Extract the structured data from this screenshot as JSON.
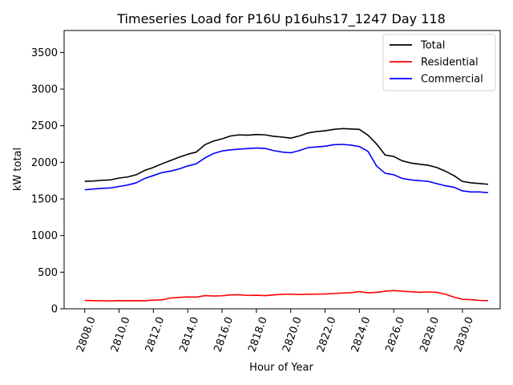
{
  "chart_data": {
    "type": "line",
    "title": "Timeseries Load for P16U p16uhs17_1247  Day 118",
    "xlabel": "Hour of Year",
    "ylabel": "kW total",
    "xlim": [
      2806.8,
      2832.2
    ],
    "ylim": [
      0,
      3800
    ],
    "xticks": [
      2808,
      2810,
      2812,
      2814,
      2816,
      2818,
      2820,
      2822,
      2824,
      2826,
      2828,
      2830
    ],
    "xtick_labels": [
      "2808.0",
      "2810.0",
      "2812.0",
      "2814.0",
      "2816.0",
      "2818.0",
      "2820.0",
      "2822.0",
      "2824.0",
      "2826.0",
      "2828.0",
      "2830.0"
    ],
    "yticks": [
      0,
      500,
      1000,
      1500,
      2000,
      2500,
      3000,
      3500
    ],
    "ytick_labels": [
      "0",
      "500",
      "1000",
      "1500",
      "2000",
      "2500",
      "3000",
      "3500"
    ],
    "legend_position": "top-right",
    "grid": false,
    "x": [
      2808.0,
      2808.5,
      2809.0,
      2809.5,
      2810.0,
      2810.5,
      2811.0,
      2811.5,
      2812.0,
      2812.5,
      2813.0,
      2813.5,
      2814.0,
      2814.5,
      2815.0,
      2815.5,
      2816.0,
      2816.5,
      2817.0,
      2817.5,
      2818.0,
      2818.5,
      2819.0,
      2819.5,
      2820.0,
      2820.5,
      2821.0,
      2821.5,
      2822.0,
      2822.5,
      2823.0,
      2823.5,
      2824.0,
      2824.5,
      2825.0,
      2825.5,
      2826.0,
      2826.5,
      2827.0,
      2827.5,
      2828.0,
      2828.5,
      2829.0,
      2829.5,
      2830.0,
      2830.5,
      2831.0,
      2831.5
    ],
    "series": [
      {
        "name": "Total",
        "color": "#000000",
        "values": [
          1740,
          1745,
          1755,
          1760,
          1785,
          1800,
          1830,
          1890,
          1930,
          1980,
          2025,
          2070,
          2110,
          2140,
          2240,
          2290,
          2320,
          2360,
          2375,
          2370,
          2380,
          2375,
          2355,
          2345,
          2330,
          2360,
          2400,
          2420,
          2430,
          2450,
          2460,
          2455,
          2450,
          2370,
          2250,
          2100,
          2080,
          2020,
          1990,
          1975,
          1960,
          1930,
          1880,
          1820,
          1740,
          1720,
          1710,
          1700
        ]
      },
      {
        "name": "Residential",
        "color": "#ff0000",
        "values": [
          115,
          112,
          110,
          108,
          112,
          110,
          112,
          110,
          118,
          122,
          148,
          155,
          162,
          160,
          180,
          175,
          178,
          190,
          192,
          182,
          185,
          180,
          190,
          198,
          200,
          195,
          198,
          200,
          202,
          208,
          215,
          220,
          235,
          218,
          225,
          240,
          250,
          240,
          232,
          225,
          230,
          225,
          200,
          160,
          130,
          125,
          115,
          112
        ]
      },
      {
        "name": "Commercial",
        "color": "#0000ff",
        "values": [
          1625,
          1635,
          1645,
          1650,
          1670,
          1690,
          1720,
          1780,
          1820,
          1860,
          1880,
          1910,
          1950,
          1980,
          2060,
          2120,
          2155,
          2170,
          2180,
          2188,
          2195,
          2190,
          2160,
          2140,
          2130,
          2160,
          2200,
          2210,
          2220,
          2240,
          2245,
          2235,
          2215,
          2150,
          1950,
          1850,
          1830,
          1780,
          1760,
          1750,
          1740,
          1710,
          1680,
          1660,
          1610,
          1595,
          1595,
          1585
        ]
      }
    ]
  }
}
